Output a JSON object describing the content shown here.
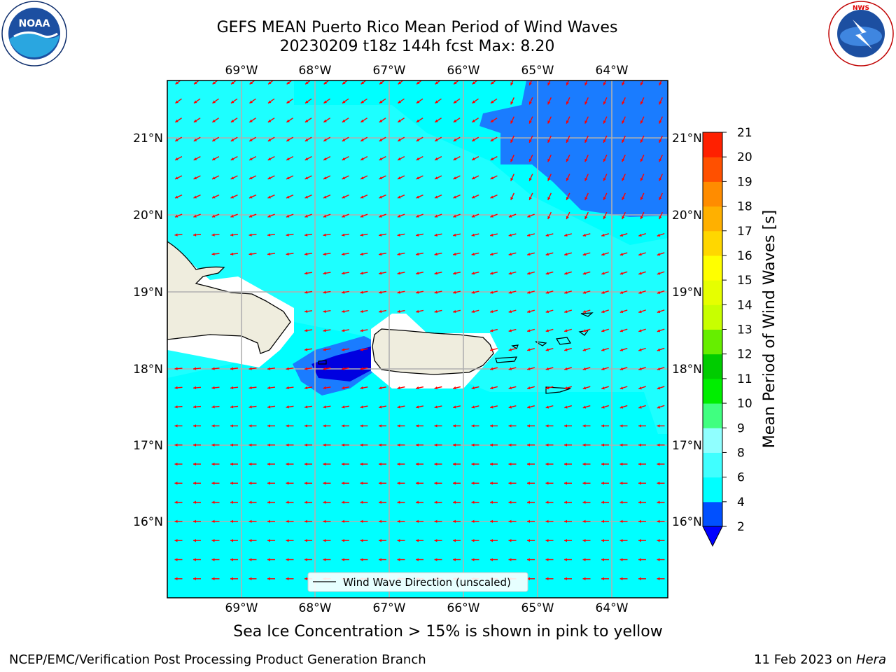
{
  "title": {
    "line1": "GEFS MEAN Puerto Rico Mean Period of Wind Waves",
    "line2": "20230209 t18z 144h fcst   Max: 8.20"
  },
  "logos": {
    "left": "NOAA",
    "left_ring": "NATIONAL OCEANIC AND ATMOSPHERIC ADMINISTRATION · U.S. DEPARTMENT OF COMMERCE",
    "right_ring": "NATIONAL WEATHER SERVICE"
  },
  "map": {
    "lon_labels": [
      "69°W",
      "68°W",
      "67°W",
      "66°W",
      "65°W",
      "64°W"
    ],
    "lat_labels": [
      "21°N",
      "20°N",
      "19°N",
      "18°N",
      "17°N",
      "16°N"
    ],
    "legend_label": "Wind Wave Direction (unscaled)",
    "arrow_color": "#ff0000",
    "field_color": "#00ffff",
    "land_color": "#efedde"
  },
  "colorbar": {
    "label": "Mean Period of Wind Waves [s]",
    "ticks": [
      "2",
      "4",
      "6",
      "8",
      "9",
      "10",
      "11",
      "12",
      "13",
      "14",
      "15",
      "16",
      "17",
      "18",
      "19",
      "20",
      "21"
    ],
    "colors": [
      "#0050ff",
      "#00ffff",
      "#40ffff",
      "#90ffff",
      "#40ff80",
      "#00ee00",
      "#00cc00",
      "#66ee00",
      "#c8ff00",
      "#e6ff00",
      "#ffff00",
      "#ffd700",
      "#ffb000",
      "#ff8c00",
      "#ff5000",
      "#ff2000",
      "#ff0000"
    ],
    "under_color": "#0000ff"
  },
  "caption": "Sea Ice Concentration > 15% is shown in pink to yellow",
  "footer": {
    "left": "NCEP/EMC/Verification Post Processing Product Generation Branch",
    "right_date": "11 Feb 2023 on ",
    "right_host": "Hera"
  }
}
